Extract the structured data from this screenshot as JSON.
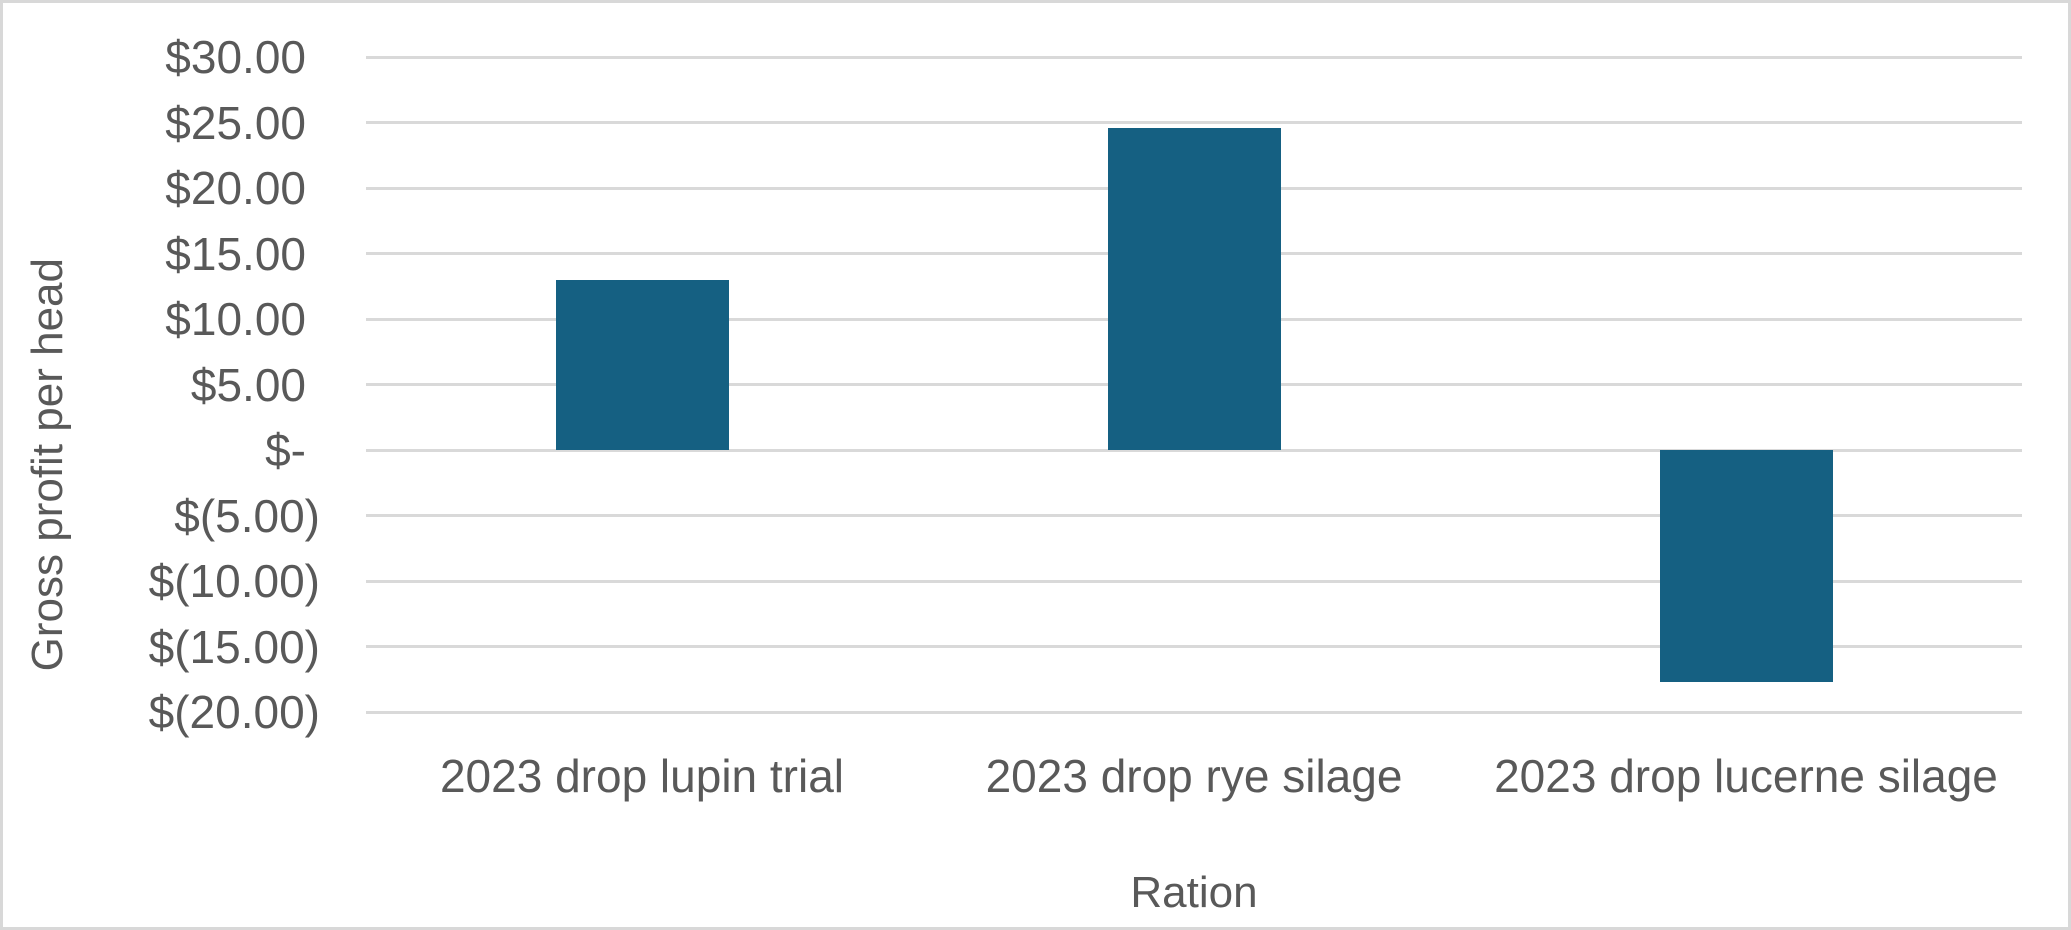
{
  "chart_data": {
    "type": "bar",
    "title": "",
    "xlabel": "Ration",
    "ylabel": "Gross profit per head",
    "categories": [
      "2023 drop lupin trial",
      "2023 drop rye silage",
      "2023 drop lucerne silage"
    ],
    "values": [
      13.0,
      24.6,
      -17.7
    ],
    "ylim": [
      -20,
      30
    ],
    "grid": "horizontal",
    "legend": "none",
    "yticks": [
      {
        "value": 30,
        "label": "$30.00"
      },
      {
        "value": 25,
        "label": "$25.00"
      },
      {
        "value": 20,
        "label": "$20.00"
      },
      {
        "value": 15,
        "label": "$15.00"
      },
      {
        "value": 10,
        "label": "$10.00"
      },
      {
        "value": 5,
        "label": "$5.00"
      },
      {
        "value": 0,
        "label": "$-"
      },
      {
        "value": -5,
        "label": "$(5.00)"
      },
      {
        "value": -10,
        "label": "$(10.00)"
      },
      {
        "value": -15,
        "label": "$(15.00)"
      },
      {
        "value": -20,
        "label": "$(20.00)"
      }
    ],
    "colors": {
      "bar": "#156082",
      "gridline": "#D9D9D9",
      "text": "#595959",
      "frame_border": "#D8D8D8"
    }
  }
}
